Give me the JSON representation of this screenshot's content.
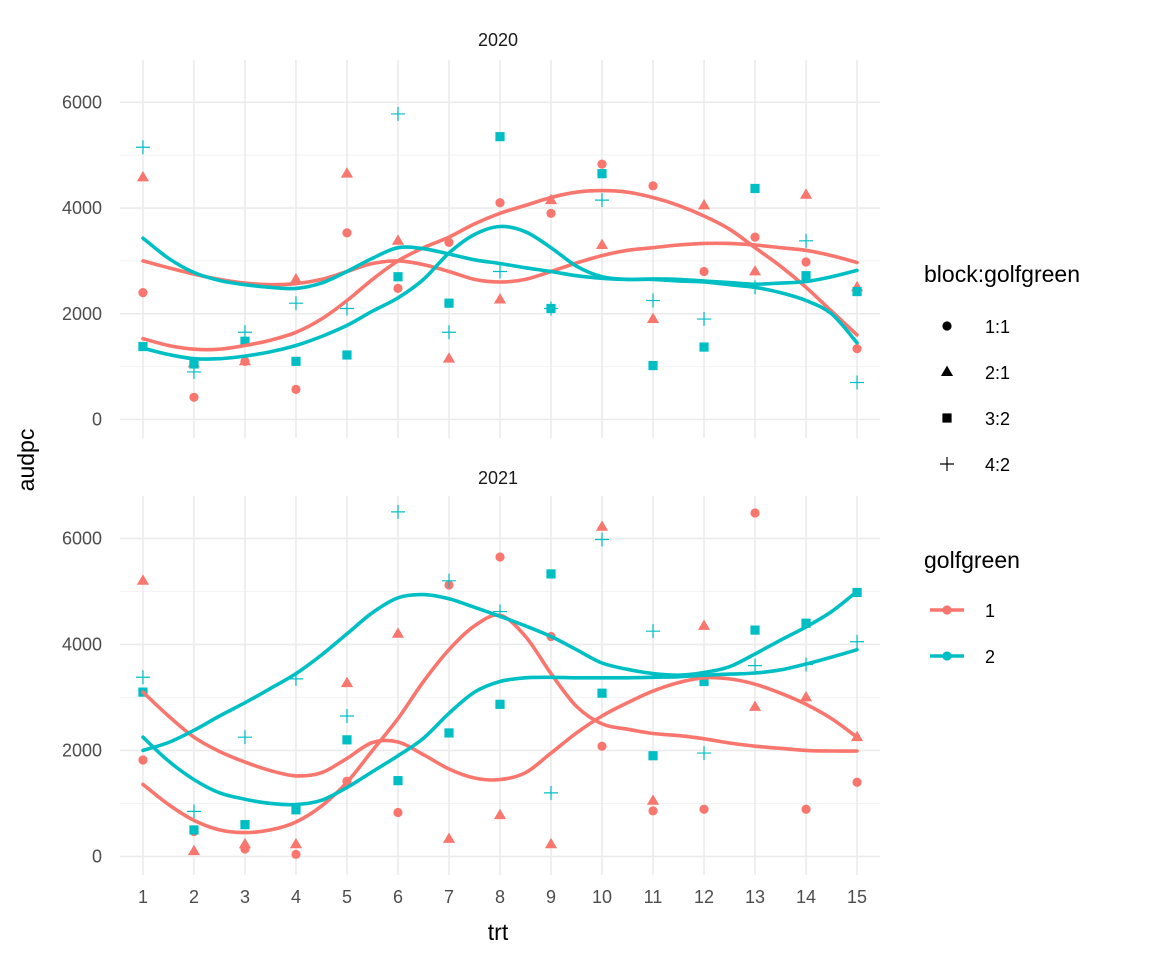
{
  "chart_data": {
    "type": "scatter",
    "xlabel": "trt",
    "ylabel": "audpc",
    "x_ticks": [
      1,
      2,
      3,
      4,
      5,
      6,
      7,
      8,
      9,
      10,
      11,
      12,
      13,
      14,
      15
    ],
    "y_ticks": [
      0,
      2000,
      4000,
      6000
    ],
    "xlim": [
      0.55,
      15.45
    ],
    "ylim": [
      -350,
      6800
    ],
    "grid": true,
    "colors": {
      "golfgreen_1": "#F8766D",
      "golfgreen_2": "#00BFC4"
    },
    "legends": [
      {
        "title": "block:golfgreen",
        "entries": [
          {
            "label": "1:1",
            "shape": "circle"
          },
          {
            "label": "2:1",
            "shape": "triangle"
          },
          {
            "label": "3:2",
            "shape": "square"
          },
          {
            "label": "4:2",
            "shape": "plus"
          }
        ]
      },
      {
        "title": "golfgreen",
        "entries": [
          {
            "label": "1",
            "color": "#F8766D"
          },
          {
            "label": "2",
            "color": "#00BFC4"
          }
        ]
      }
    ],
    "panels": [
      {
        "strip": "2020",
        "points": [
          {
            "block": "1:1",
            "x": [
              1,
              2,
              3,
              4,
              5,
              6,
              7,
              8,
              9,
              10,
              11,
              12,
              13,
              14,
              15
            ],
            "y": [
              2400,
              420,
              1100,
              570,
              3530,
              2480,
              3350,
              4100,
              3900,
              4830,
              4420,
              2800,
              3450,
              2980,
              1340
            ]
          },
          {
            "block": "2:1",
            "x": [
              1,
              2,
              3,
              4,
              5,
              6,
              7,
              8,
              9,
              10,
              11,
              12,
              13,
              14,
              15
            ],
            "y": [
              4580,
              1060,
              1100,
              2650,
              4650,
              3380,
              1150,
              2270,
              4150,
              3300,
              1900,
              4050,
              2800,
              4250,
              2500
            ]
          },
          {
            "block": "3:2",
            "x": [
              1,
              2,
              3,
              4,
              5,
              6,
              7,
              8,
              9,
              10,
              11,
              12,
              13,
              14,
              15
            ],
            "y": [
              1380,
              1050,
              1480,
              1100,
              1220,
              2700,
              2200,
              5350,
              2100,
              4650,
              1020,
              1370,
              4370,
              2720,
              2420
            ]
          },
          {
            "block": "4:2",
            "x": [
              1,
              2,
              3,
              4,
              5,
              6,
              7,
              8,
              9,
              10,
              11,
              12,
              13,
              14,
              15
            ],
            "y": [
              5150,
              900,
              1650,
              2200,
              2100,
              5780,
              1650,
              2800,
              2100,
              4150,
              2250,
              1900,
              2500,
              3380,
              700
            ]
          }
        ],
        "smooth_lines": [
          {
            "block": "1:1",
            "x": [
              1,
              1.5,
              2,
              2.5,
              3,
              3.5,
              4,
              4.5,
              5,
              5.5,
              6,
              6.5,
              7,
              7.5,
              8,
              8.5,
              9,
              9.5,
              10,
              10.5,
              11,
              11.5,
              12,
              12.5,
              13,
              13.5,
              14,
              14.5,
              15
            ],
            "y": [
              1530,
              1400,
              1330,
              1330,
              1400,
              1500,
              1650,
              1900,
              2250,
              2650,
              3000,
              3250,
              3450,
              3700,
              3900,
              4050,
              4200,
              4300,
              4330,
              4300,
              4200,
              4050,
              3850,
              3600,
              3250,
              2900,
              2500,
              2050,
              1600
            ]
          },
          {
            "block": "2:1",
            "x": [
              1,
              1.5,
              2,
              2.5,
              3,
              3.5,
              4,
              4.5,
              5,
              5.5,
              6,
              6.5,
              7,
              7.5,
              8,
              8.5,
              9,
              9.5,
              10,
              10.5,
              11,
              11.5,
              12,
              12.5,
              13,
              13.5,
              14,
              14.5,
              15
            ],
            "y": [
              3000,
              2870,
              2750,
              2650,
              2580,
              2550,
              2570,
              2650,
              2800,
              2950,
              3000,
              2930,
              2800,
              2650,
              2600,
              2650,
              2800,
              2960,
              3100,
              3200,
              3250,
              3300,
              3330,
              3330,
              3300,
              3250,
              3200,
              3100,
              2970
            ]
          },
          {
            "block": "3:2",
            "x": [
              1,
              1.5,
              2,
              2.5,
              3,
              3.5,
              4,
              4.5,
              5,
              5.5,
              6,
              6.5,
              7,
              7.5,
              8,
              8.5,
              9,
              9.5,
              10,
              10.5,
              11,
              11.5,
              12,
              12.5,
              13,
              13.5,
              14,
              14.5,
              15
            ],
            "y": [
              1350,
              1230,
              1150,
              1150,
              1200,
              1280,
              1400,
              1570,
              1780,
              2050,
              2300,
              2650,
              3150,
              3500,
              3650,
              3550,
              3250,
              2900,
              2700,
              2650,
              2650,
              2620,
              2600,
              2550,
              2500,
              2400,
              2250,
              2000,
              1450
            ]
          },
          {
            "block": "4:2",
            "x": [
              1,
              1.5,
              2,
              2.5,
              3,
              3.5,
              4,
              4.5,
              5,
              5.5,
              6,
              6.5,
              7,
              7.5,
              8,
              8.5,
              9,
              9.5,
              10,
              10.5,
              11,
              11.5,
              12,
              12.5,
              13,
              13.5,
              14,
              14.5,
              15
            ],
            "y": [
              3430,
              3050,
              2780,
              2630,
              2550,
              2500,
              2480,
              2580,
              2800,
              3050,
              3250,
              3230,
              3130,
              3020,
              2950,
              2870,
              2800,
              2720,
              2670,
              2650,
              2660,
              2650,
              2620,
              2590,
              2560,
              2580,
              2610,
              2700,
              2820
            ]
          }
        ]
      },
      {
        "strip": "2021",
        "points": [
          {
            "block": "1:1",
            "x": [
              1,
              2,
              3,
              4,
              5,
              6,
              7,
              8,
              9,
              10,
              11,
              12,
              13,
              14,
              15
            ],
            "y": [
              1820,
              470,
              140,
              40,
              1420,
              830,
              5120,
              5650,
              4150,
              2080,
              860,
              890,
              6480,
              890,
              1400
            ]
          },
          {
            "block": "2:1",
            "x": [
              1,
              2,
              3,
              4,
              5,
              6,
              7,
              8,
              9,
              10,
              11,
              12,
              13,
              14,
              15
            ],
            "y": [
              5200,
              100,
              230,
              230,
              3270,
              4200,
              330,
              780,
              230,
              6220,
              1050,
              4350,
              2820,
              3000,
              2250
            ]
          },
          {
            "block": "3:2",
            "x": [
              1,
              2,
              3,
              4,
              5,
              6,
              7,
              8,
              9,
              10,
              11,
              12,
              13,
              14,
              15
            ],
            "y": [
              3100,
              500,
              600,
              880,
              2200,
              1430,
              2330,
              2870,
              5330,
              3080,
              1900,
              3300,
              4270,
              4400,
              4980
            ]
          },
          {
            "block": "4:2",
            "x": [
              1,
              2,
              3,
              4,
              5,
              6,
              7,
              8,
              9,
              10,
              11,
              12,
              13,
              14,
              15
            ],
            "y": [
              3380,
              850,
              2250,
              3350,
              2650,
              6500,
              5200,
              4620,
              1200,
              5980,
              4250,
              1950,
              3600,
              3620,
              4050
            ]
          }
        ],
        "smooth_lines": [
          {
            "block": "1:1",
            "x": [
              1,
              1.5,
              2,
              2.5,
              3,
              3.5,
              4,
              4.5,
              5,
              5.5,
              6,
              6.5,
              7,
              7.5,
              8,
              8.5,
              9,
              9.5,
              10,
              10.5,
              11,
              11.5,
              12,
              12.5,
              13,
              13.5,
              14,
              14.5,
              15
            ],
            "y": [
              1360,
              980,
              680,
              500,
              450,
              500,
              650,
              950,
              1400,
              2000,
              2600,
              3300,
              3900,
              4350,
              4550,
              4150,
              3450,
              2830,
              2500,
              2400,
              2320,
              2280,
              2220,
              2140,
              2080,
              2040,
              2000,
              1990,
              1990
            ]
          },
          {
            "block": "2:1",
            "x": [
              1,
              1.5,
              2,
              2.5,
              3,
              3.5,
              4,
              4.5,
              5,
              5.5,
              6,
              6.5,
              7,
              7.5,
              8,
              8.5,
              9,
              9.5,
              10,
              10.5,
              11,
              11.5,
              12,
              12.5,
              13,
              13.5,
              14,
              14.5,
              15
            ],
            "y": [
              3100,
              2650,
              2250,
              1980,
              1780,
              1620,
              1520,
              1580,
              1850,
              2150,
              2160,
              1920,
              1650,
              1480,
              1450,
              1580,
              1950,
              2330,
              2650,
              2900,
              3120,
              3280,
              3370,
              3350,
              3250,
              3080,
              2870,
              2600,
              2250
            ]
          },
          {
            "block": "3:2",
            "x": [
              1,
              1.5,
              2,
              2.5,
              3,
              3.5,
              4,
              4.5,
              5,
              5.5,
              6,
              6.5,
              7,
              7.5,
              8,
              8.5,
              9,
              9.5,
              10,
              10.5,
              11,
              11.5,
              12,
              12.5,
              13,
              13.5,
              14,
              14.5,
              15
            ],
            "y": [
              2250,
              1800,
              1450,
              1200,
              1080,
              1000,
              980,
              1060,
              1300,
              1600,
              1900,
              2230,
              2700,
              3100,
              3300,
              3370,
              3380,
              3370,
              3370,
              3370,
              3380,
              3390,
              3420,
              3440,
              3460,
              3520,
              3630,
              3760,
              3900
            ]
          },
          {
            "block": "4:2",
            "x": [
              1,
              1.5,
              2,
              2.5,
              3,
              3.5,
              4,
              4.5,
              5,
              5.5,
              6,
              6.5,
              7,
              7.5,
              8,
              8.5,
              9,
              9.5,
              10,
              10.5,
              11,
              11.5,
              12,
              12.5,
              13,
              13.5,
              14,
              14.5,
              15
            ],
            "y": [
              2000,
              2150,
              2380,
              2650,
              2900,
              3170,
              3450,
              3800,
              4200,
              4600,
              4880,
              4940,
              4860,
              4700,
              4530,
              4350,
              4150,
              3900,
              3650,
              3530,
              3450,
              3420,
              3470,
              3580,
              3820,
              4080,
              4330,
              4620,
              5000
            ]
          }
        ]
      }
    ]
  }
}
